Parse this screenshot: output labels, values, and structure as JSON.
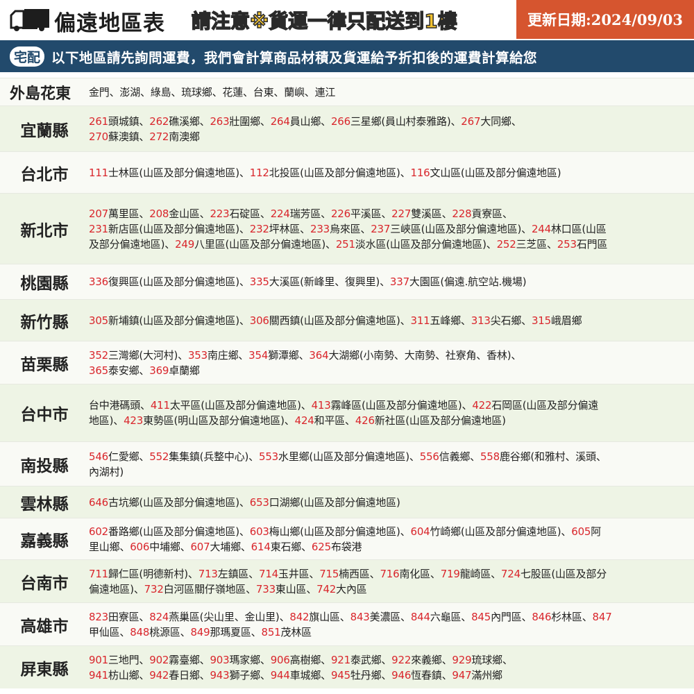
{
  "header": {
    "title": "偏遠地區表",
    "notice": "請注意※貨運一律只配送到1樓",
    "updated": "更新日期:2024/09/03",
    "icon": "truck-icon"
  },
  "banner": {
    "badge": "宅配",
    "text": "以下地區請先詢問運費，我們會計算商品材積及貨運給予折扣後的運費計算給您"
  },
  "colors": {
    "code": "#d9262c",
    "banner": "#224a6c",
    "date_box": "#d6552f",
    "notice": "#f2c230",
    "row_alt": "#eef4e5"
  },
  "rows": [
    {
      "region": "外島花東",
      "lines": [
        [
          {
            "t": "金門、澎湖、綠島、琉球鄉、花蓮、台東、蘭嶼、連江"
          }
        ]
      ]
    },
    {
      "region": "宜蘭縣",
      "lines": [
        [
          {
            "c": "261",
            "t": "頭城鎮、"
          },
          {
            "c": "262",
            "t": "礁溪鄉、"
          },
          {
            "c": "263",
            "t": "壯圍鄉、"
          },
          {
            "c": "264",
            "t": "員山鄉、"
          },
          {
            "c": "266",
            "t": "三星鄉(員山村泰雅路)、"
          },
          {
            "c": "267",
            "t": "大同鄉、"
          }
        ],
        [
          {
            "c": "270",
            "t": "蘇澳鎮、"
          },
          {
            "c": "272",
            "t": "南澳鄉"
          }
        ]
      ]
    },
    {
      "region": "台北市",
      "lines": [
        [
          {
            "c": "111",
            "t": "士林區(山區及部分偏遠地區)、"
          },
          {
            "c": "112",
            "t": "北投區(山區及部分偏遠地區)、"
          },
          {
            "c": "116",
            "t": "文山區(山區及部分偏遠地區)"
          }
        ]
      ]
    },
    {
      "region": "新北市",
      "lines": [
        [
          {
            "c": "207",
            "t": "萬里區、"
          },
          {
            "c": "208",
            "t": "金山區、"
          },
          {
            "c": "223",
            "t": "石碇區、"
          },
          {
            "c": "224",
            "t": "瑞芳區、"
          },
          {
            "c": "226",
            "t": "平溪區、"
          },
          {
            "c": "227",
            "t": "雙溪區、"
          },
          {
            "c": "228",
            "t": "貢寮區、"
          }
        ],
        [
          {
            "c": "231",
            "t": "新店區(山區及部分偏遠地區)、"
          },
          {
            "c": "232",
            "t": "坪林區、"
          },
          {
            "c": "233",
            "t": "烏來區、"
          },
          {
            "c": "237",
            "t": "三峽區(山區及部分偏遠地區)、"
          },
          {
            "c": "244",
            "t": "林口區(山區"
          }
        ],
        [
          {
            "t": "及部分偏遠地區)、"
          },
          {
            "c": "249",
            "t": "八里區(山區及部分偏遠地區)、"
          },
          {
            "c": "251",
            "t": "淡水區(山區及部分偏遠地區)、"
          },
          {
            "c": "252",
            "t": "三芝區、"
          },
          {
            "c": "253",
            "t": "石門區"
          }
        ]
      ]
    },
    {
      "region": "桃園縣",
      "lines": [
        [
          {
            "c": "336",
            "t": "復興區(山區及部分偏遠地區)、"
          },
          {
            "c": "335",
            "t": "大溪區(新峰里、復興里)、"
          },
          {
            "c": "337",
            "t": "大園區(偏遠.航空站.機場)"
          }
        ]
      ]
    },
    {
      "region": "新竹縣",
      "lines": [
        [
          {
            "c": "305",
            "t": "新埔鎮(山區及部分偏遠地區)、"
          },
          {
            "c": "306",
            "t": "關西鎮(山區及部分偏遠地區)、"
          },
          {
            "c": "311",
            "t": "五峰鄉、"
          },
          {
            "c": "313",
            "t": "尖石鄉、"
          },
          {
            "c": "315",
            "t": "峨眉鄉"
          }
        ]
      ]
    },
    {
      "region": "苗栗縣",
      "lines": [
        [
          {
            "c": "352",
            "t": "三灣鄉(大河村)、"
          },
          {
            "c": "353",
            "t": "南庄鄉、"
          },
          {
            "c": "354",
            "t": "獅潭鄉、"
          },
          {
            "c": "364",
            "t": "大湖鄉(小南勢、大南勢、社寮角、香林)、"
          }
        ],
        [
          {
            "c": "365",
            "t": "泰安鄉、"
          },
          {
            "c": "369",
            "t": "卓蘭鄉"
          }
        ]
      ]
    },
    {
      "region": "台中市",
      "lines": [
        [
          {
            "t": "台中港碼頭、"
          },
          {
            "c": "411",
            "t": "太平區(山區及部分偏遠地區)、"
          },
          {
            "c": "413",
            "t": "霧峰區(山區及部分偏遠地區)、"
          },
          {
            "c": "422",
            "t": "石岡區(山區及部分偏遠"
          }
        ],
        [
          {
            "t": "地區)、"
          },
          {
            "c": "423",
            "t": "東勢區(明山區及部分偏遠地區)、"
          },
          {
            "c": "424",
            "t": "和平區、"
          },
          {
            "c": "426",
            "t": "新社區(山區及部分偏遠地區)"
          }
        ]
      ]
    },
    {
      "region": "南投縣",
      "lines": [
        [
          {
            "c": "546",
            "t": "仁愛鄉、"
          },
          {
            "c": "552",
            "t": "集集鎮(兵整中心)、"
          },
          {
            "c": "553",
            "t": "水里鄉(山區及部分偏遠地區)、"
          },
          {
            "c": "556",
            "t": "信義鄉、"
          },
          {
            "c": "558",
            "t": "鹿谷鄉(和雅村、溪頭、"
          }
        ],
        [
          {
            "t": "內湖村)"
          }
        ]
      ]
    },
    {
      "region": "雲林縣",
      "lines": [
        [
          {
            "c": "646",
            "t": "古坑鄉(山區及部分偏遠地區)、"
          },
          {
            "c": "653",
            "t": "口湖鄉(山區及部分偏遠地區)"
          }
        ]
      ]
    },
    {
      "region": "嘉義縣",
      "lines": [
        [
          {
            "c": "602",
            "t": "番路鄉(山區及部分偏遠地區)、"
          },
          {
            "c": "603",
            "t": "梅山鄉(山區及部分偏遠地區)、"
          },
          {
            "c": "604",
            "t": "竹崎鄉(山區及部分偏遠地區)、"
          },
          {
            "c": "605",
            "t": "阿"
          }
        ],
        [
          {
            "t": "里山鄉、"
          },
          {
            "c": "606",
            "t": "中埔鄉、"
          },
          {
            "c": "607",
            "t": "大埔鄉、"
          },
          {
            "c": "614",
            "t": "東石鄉、"
          },
          {
            "c": "625",
            "t": "布袋港"
          }
        ]
      ]
    },
    {
      "region": "台南市",
      "lines": [
        [
          {
            "c": "711",
            "t": "歸仁區(明德新村)、"
          },
          {
            "c": "713",
            "t": "左鎮區、"
          },
          {
            "c": "714",
            "t": "玉井區、"
          },
          {
            "c": "715",
            "t": "楠西區、"
          },
          {
            "c": "716",
            "t": "南化區、"
          },
          {
            "c": "719",
            "t": "龍崎區、"
          },
          {
            "c": "724",
            "t": "七股區(山區及部分"
          }
        ],
        [
          {
            "t": "偏遠地區)、"
          },
          {
            "c": "732",
            "t": "白河區關仔嶺地區、"
          },
          {
            "c": "733",
            "t": "東山區、"
          },
          {
            "c": "742",
            "t": "大內區"
          }
        ]
      ]
    },
    {
      "region": "高雄市",
      "lines": [
        [
          {
            "c": "823",
            "t": "田寮區、"
          },
          {
            "c": "824",
            "t": "燕巢區(尖山里、金山里)、"
          },
          {
            "c": "842",
            "t": "旗山區、"
          },
          {
            "c": "843",
            "t": "美濃區、"
          },
          {
            "c": "844",
            "t": "六龜區、"
          },
          {
            "c": "845",
            "t": "內門區、"
          },
          {
            "c": "846",
            "t": "杉林區、"
          },
          {
            "c": "847",
            "t": ""
          }
        ],
        [
          {
            "t": "甲仙區、"
          },
          {
            "c": "848",
            "t": "桃源區、"
          },
          {
            "c": "849",
            "t": "那瑪夏區、"
          },
          {
            "c": "851",
            "t": "茂林區"
          }
        ]
      ]
    },
    {
      "region": "屏東縣",
      "lines": [
        [
          {
            "c": "901",
            "t": "三地門、"
          },
          {
            "c": "902",
            "t": "霧臺鄉、"
          },
          {
            "c": "903",
            "t": "瑪家鄉、"
          },
          {
            "c": "906",
            "t": "高樹鄉、"
          },
          {
            "c": "921",
            "t": "泰武鄉、"
          },
          {
            "c": "922",
            "t": "來義鄉、"
          },
          {
            "c": "929",
            "t": "琉球鄉、"
          }
        ],
        [
          {
            "c": "941",
            "t": "枋山鄉、"
          },
          {
            "c": "942",
            "t": "春日鄉、"
          },
          {
            "c": "943",
            "t": "獅子鄉、"
          },
          {
            "c": "944",
            "t": "車城鄉、"
          },
          {
            "c": "945",
            "t": "牡丹鄉、"
          },
          {
            "c": "946",
            "t": "恆春鎮、"
          },
          {
            "c": "947",
            "t": "滿州鄉"
          }
        ]
      ]
    }
  ]
}
